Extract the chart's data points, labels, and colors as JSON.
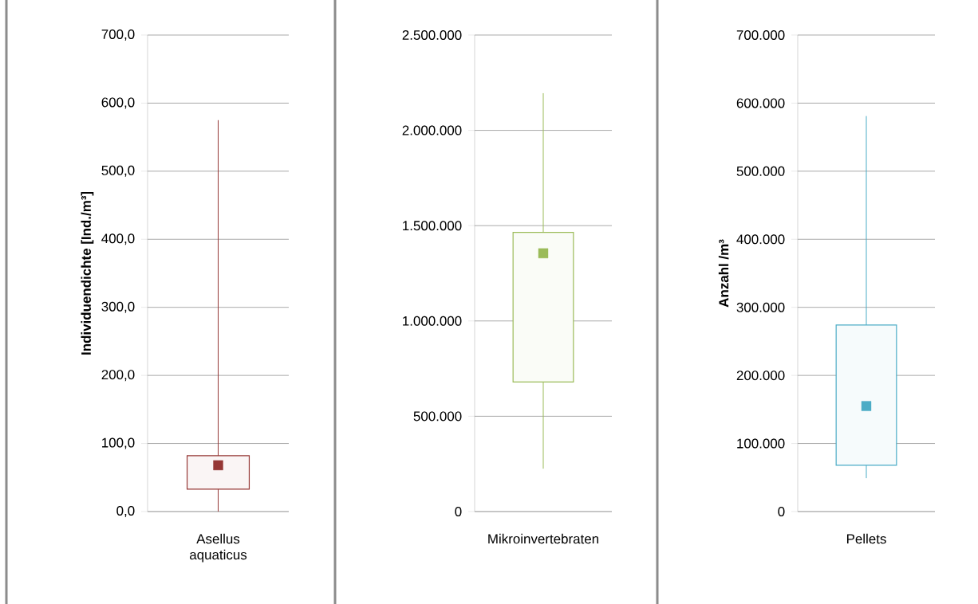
{
  "chart_data": [
    {
      "type": "box",
      "categories": [
        "Asellus aquaticus"
      ],
      "ylabel": "Individuendichte [Ind./m³]",
      "color": "#953735",
      "boxes": [
        {
          "low": 0,
          "q1": 33,
          "median": 68,
          "q3": 82,
          "high": 575
        }
      ],
      "ylim": [
        0,
        700
      ],
      "yticks": [
        {
          "value": 0,
          "label": "0,0"
        },
        {
          "value": 100,
          "label": "100,0"
        },
        {
          "value": 200,
          "label": "200,0"
        },
        {
          "value": 300,
          "label": "300,0"
        },
        {
          "value": 400,
          "label": "400,0"
        },
        {
          "value": 500,
          "label": "500,0"
        },
        {
          "value": 600,
          "label": "600,0"
        },
        {
          "value": 700,
          "label": "700,0"
        }
      ],
      "grid": "y",
      "marker": "square"
    },
    {
      "type": "box",
      "categories": [
        "Mikroinvertebraten"
      ],
      "color": "#9bbb59",
      "boxes": [
        {
          "low": 225000,
          "q1": 680000,
          "median": 1355000,
          "q3": 1465000,
          "high": 2195000
        }
      ],
      "ylim": [
        0,
        2500000
      ],
      "yticks": [
        0,
        {
          "value": 500000,
          "label": "500.000"
        },
        {
          "value": 1000000,
          "label": "1.000.000"
        },
        {
          "value": 1500000,
          "label": "1.500.000"
        },
        {
          "value": 2000000,
          "label": "2.000.000"
        },
        {
          "value": 2500000,
          "label": "2.500.000"
        }
      ],
      "grid": "y",
      "marker": "square"
    },
    {
      "type": "box",
      "categories": [
        "Pellets"
      ],
      "ylabel": "Anzahl /m³",
      "color": "#4bacc6",
      "boxes": [
        {
          "low": 49000,
          "q1": 68000,
          "median": 155000,
          "q3": 274000,
          "high": 581000
        }
      ],
      "ylim": [
        0,
        700000
      ],
      "yticks": [
        0,
        {
          "value": 100000,
          "label": "100.000"
        },
        {
          "value": 200000,
          "label": "200.000"
        },
        {
          "value": 300000,
          "label": "300.000"
        },
        {
          "value": 400000,
          "label": "400.000"
        },
        {
          "value": 500000,
          "label": "500.000"
        },
        {
          "value": 600000,
          "label": "600.000"
        },
        {
          "value": 700000,
          "label": "700.000"
        }
      ],
      "grid": "y",
      "marker": "square"
    }
  ]
}
